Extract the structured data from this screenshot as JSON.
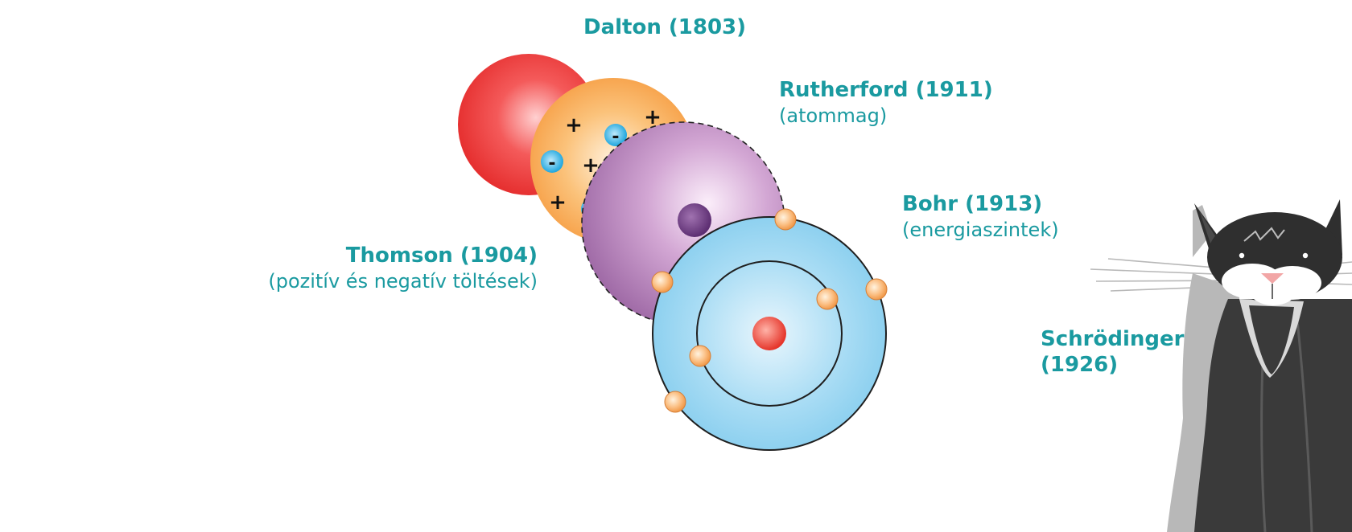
{
  "models": {
    "dalton": {
      "name": "Dalton (1803)"
    },
    "thomson": {
      "name": "Thomson (1904)",
      "note": "(pozitív és negatív töltések)"
    },
    "rutherford": {
      "name": "Rutherford (1911)",
      "note": "(atommag)"
    },
    "bohr": {
      "name": "Bohr (1913)",
      "note": "(energiaszintek)"
    },
    "schrodinger": {
      "name": "Schrödinger",
      "year": "(1926)"
    }
  },
  "thomson_charges": {
    "plus": "+",
    "minus": "-"
  },
  "colors": {
    "label_teal": "#1a9aa0",
    "dalton_red": "#ef3b3b",
    "thomson_orange": "#f7a447",
    "rutherford_purple": "#b07cb5",
    "bohr_blue": "#8fd2f0",
    "electron_orange": "#f6a45a",
    "cat_dark": "#3a3a3a",
    "cat_grey": "#b8b8b8"
  },
  "icons": [
    "dalton-sphere",
    "thomson-plum-pudding",
    "rutherford-nucleus",
    "bohr-orbits",
    "schrodinger-cat"
  ]
}
